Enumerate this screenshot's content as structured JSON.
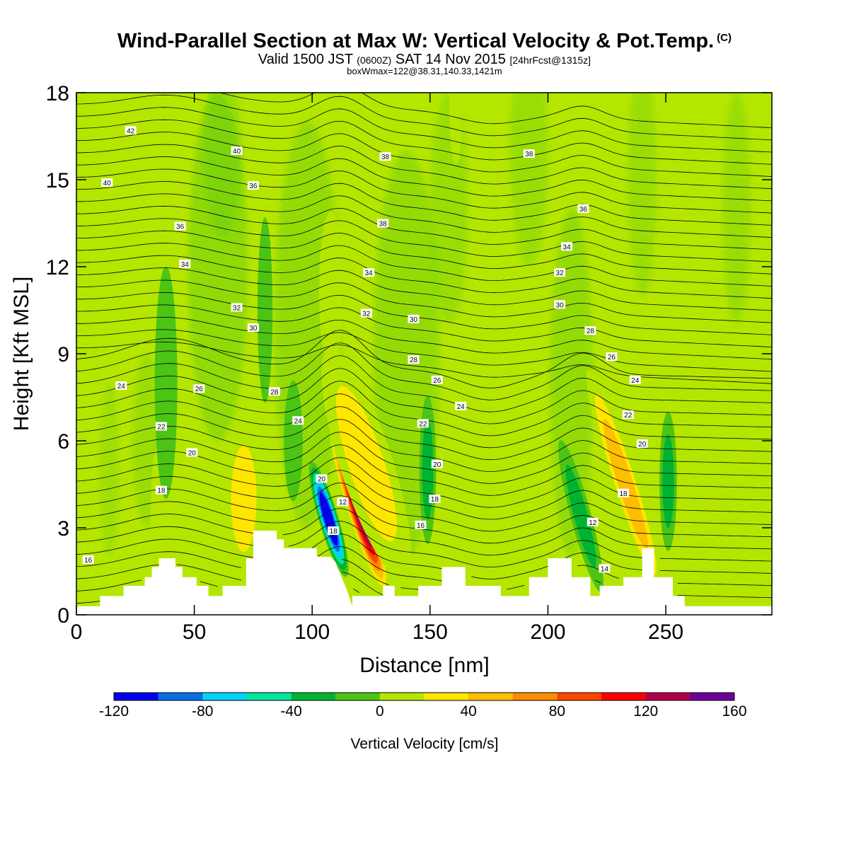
{
  "title": {
    "main": "Wind-Parallel Section at Max W: Vertical Velocity & Pot.Temp.",
    "copyright": "(C)",
    "valid_prefix": "Valid 1500 JST",
    "valid_utc": "(0600Z)",
    "valid_date": "SAT 14 Nov 2015",
    "forecast": "[24hrFcst@1315z]",
    "box": "boxWmax=122@38.31,140.33,1421m"
  },
  "colors": {
    "background_fill": "#b4e600",
    "terrain": "#ffffff",
    "contour": "#000000"
  },
  "chart_data": {
    "type": "heatmap",
    "xlabel": "Distance [nm]",
    "ylabel": "Height [Kft MSL]",
    "xlim": [
      0,
      295
    ],
    "ylim": [
      0,
      18
    ],
    "x_ticks": [
      0,
      50,
      100,
      150,
      200,
      250
    ],
    "y_ticks": [
      0,
      3,
      6,
      9,
      12,
      15,
      18
    ],
    "x_tick_labels": [
      "0",
      "50",
      "100",
      "150",
      "200",
      "250"
    ],
    "y_tick_labels": [
      "0",
      "3",
      "6",
      "9",
      "12",
      "15",
      "18"
    ],
    "colorbar": {
      "label": "Vertical Velocity [cm/s]",
      "tick_values": [
        -120,
        -80,
        -40,
        0,
        40,
        80,
        120,
        160
      ],
      "tick_labels": [
        "-120",
        "-80",
        "-40",
        "0",
        "40",
        "80",
        "120",
        "160"
      ],
      "bins": [
        -120,
        -100,
        -80,
        -60,
        -40,
        -20,
        0,
        20,
        40,
        60,
        80,
        100,
        120,
        140,
        160
      ],
      "colors": [
        "#0000f0",
        "#0a6ee6",
        "#00d2fa",
        "#00e6a0",
        "#00b432",
        "#4cc414",
        "#b4e600",
        "#ffe600",
        "#ffbe00",
        "#ff8c00",
        "#ff4600",
        "#ff0000",
        "#b4004b",
        "#6e0096"
      ]
    },
    "terrain_profile": {
      "x": [
        0,
        10,
        10,
        20,
        20,
        29,
        29,
        32,
        32,
        35,
        35,
        42,
        42,
        45,
        45,
        51,
        51,
        56,
        56,
        62,
        62,
        72,
        72,
        75,
        75,
        85,
        85,
        88,
        88,
        97,
        97,
        102,
        102,
        108,
        110,
        112,
        115,
        117,
        117,
        130,
        130,
        135,
        135,
        145,
        145,
        155,
        155,
        165,
        165,
        180,
        180,
        192,
        192,
        200,
        200,
        210,
        210,
        218,
        218,
        222,
        222,
        232,
        232,
        240,
        240,
        245,
        245,
        253,
        253,
        258,
        258,
        265,
        265,
        295
      ],
      "y": [
        0.3,
        0.3,
        0.65,
        0.65,
        1.0,
        1.0,
        1.3,
        1.3,
        1.65,
        1.65,
        1.95,
        1.95,
        1.65,
        1.65,
        1.3,
        1.3,
        1.0,
        1.0,
        0.65,
        0.65,
        1.0,
        1.0,
        1.95,
        1.95,
        2.9,
        2.9,
        2.6,
        2.6,
        2.3,
        2.3,
        2.3,
        2.3,
        2.0,
        2.0,
        1.8,
        1.4,
        0.8,
        0.3,
        0.65,
        0.65,
        1.0,
        1.0,
        0.65,
        0.65,
        1.0,
        1.0,
        1.65,
        1.65,
        1.0,
        1.0,
        0.65,
        0.65,
        1.3,
        1.3,
        1.95,
        1.95,
        1.3,
        1.3,
        0.65,
        0.65,
        1.0,
        1.0,
        1.3,
        1.3,
        2.3,
        2.3,
        1.3,
        1.3,
        0.65,
        0.65,
        0.3,
        0.3,
        0.3,
        0.3
      ]
    },
    "vertical_velocity_cells": [
      {
        "x": 107,
        "y": 3.3,
        "sx": 2.6,
        "sy": 1.3,
        "tilt": 0.28,
        "value": -120
      },
      {
        "x": 120,
        "y": 3.6,
        "sx": 3.2,
        "sy": 1.9,
        "tilt": 0.3,
        "value": 150
      },
      {
        "x": 123,
        "y": 5.2,
        "sx": 7,
        "sy": 2.6,
        "tilt": 0.3,
        "value": 45
      },
      {
        "x": 71,
        "y": 4.0,
        "sx": 5,
        "sy": 1.7,
        "value": 55
      },
      {
        "x": 34,
        "y": 3.3,
        "sx": 1.6,
        "sy": 1.5,
        "value": 35
      },
      {
        "x": 108,
        "y": 11.2,
        "sx": 3.2,
        "sy": 1.7,
        "value": 32
      },
      {
        "x": 172,
        "y": 11.5,
        "sx": 3.3,
        "sy": 2.3,
        "value": 34
      },
      {
        "x": 161,
        "y": 17.6,
        "sx": 1.8,
        "sy": 1.3,
        "value": 30
      },
      {
        "x": 233,
        "y": 4.5,
        "sx": 3.5,
        "sy": 2.6,
        "tilt": 0.3,
        "value": 65
      },
      {
        "x": 238,
        "y": 8.2,
        "sx": 2.5,
        "sy": 1.5,
        "value": 30
      },
      {
        "x": 262,
        "y": 9.2,
        "sx": 2.2,
        "sy": 2,
        "value": 30
      },
      {
        "x": 214,
        "y": 3.4,
        "sx": 2.7,
        "sy": 1.7,
        "tilt": 0.25,
        "value": -50
      },
      {
        "x": 251,
        "y": 4.6,
        "sx": 2.3,
        "sy": 1.5,
        "value": -50
      },
      {
        "x": 149,
        "y": 5.0,
        "sx": 2.2,
        "sy": 1.6,
        "value": -40
      },
      {
        "x": 92,
        "y": 6.0,
        "sx": 2.5,
        "sy": 1.3,
        "value": -30
      },
      {
        "x": 38,
        "y": 8.0,
        "sx": 3,
        "sy": 2.5,
        "value": -30
      },
      {
        "x": 80,
        "y": 10.5,
        "sx": 2,
        "sy": 2,
        "value": -30
      }
    ],
    "theta_levels": [
      16,
      18,
      20,
      22,
      24,
      26,
      28,
      30,
      32,
      34,
      36,
      38,
      40,
      42
    ],
    "contour_labels": [
      {
        "text": "42",
        "x": 23,
        "y": 16.7
      },
      {
        "text": "40",
        "x": 13,
        "y": 14.9
      },
      {
        "text": "40",
        "x": 68,
        "y": 16.0
      },
      {
        "text": "36",
        "x": 75,
        "y": 14.8
      },
      {
        "text": "36",
        "x": 44,
        "y": 13.4
      },
      {
        "text": "34",
        "x": 46,
        "y": 12.1
      },
      {
        "text": "32",
        "x": 68,
        "y": 10.6
      },
      {
        "text": "30",
        "x": 75,
        "y": 9.9
      },
      {
        "text": "38",
        "x": 131,
        "y": 15.8
      },
      {
        "text": "38",
        "x": 130,
        "y": 13.5
      },
      {
        "text": "34",
        "x": 124,
        "y": 11.8
      },
      {
        "text": "32",
        "x": 123,
        "y": 10.4
      },
      {
        "text": "30",
        "x": 143,
        "y": 10.2
      },
      {
        "text": "28",
        "x": 143,
        "y": 8.8
      },
      {
        "text": "26",
        "x": 153,
        "y": 8.1
      },
      {
        "text": "24",
        "x": 163,
        "y": 7.2
      },
      {
        "text": "22",
        "x": 147,
        "y": 6.6
      },
      {
        "text": "20",
        "x": 153,
        "y": 5.2
      },
      {
        "text": "18",
        "x": 152,
        "y": 4.0
      },
      {
        "text": "16",
        "x": 146,
        "y": 3.1
      },
      {
        "text": "24",
        "x": 19,
        "y": 7.9
      },
      {
        "text": "26",
        "x": 52,
        "y": 7.8
      },
      {
        "text": "28",
        "x": 84,
        "y": 7.7
      },
      {
        "text": "24",
        "x": 94,
        "y": 6.7
      },
      {
        "text": "22",
        "x": 36,
        "y": 6.5
      },
      {
        "text": "20",
        "x": 49,
        "y": 5.6
      },
      {
        "text": "18",
        "x": 36,
        "y": 4.3
      },
      {
        "text": "16",
        "x": 5,
        "y": 1.9
      },
      {
        "text": "20",
        "x": 104,
        "y": 4.7
      },
      {
        "text": "12",
        "x": 113,
        "y": 3.9
      },
      {
        "text": "18",
        "x": 109,
        "y": 2.9
      },
      {
        "text": "38",
        "x": 192,
        "y": 15.9
      },
      {
        "text": "36",
        "x": 215,
        "y": 14.0
      },
      {
        "text": "34",
        "x": 208,
        "y": 12.7
      },
      {
        "text": "32",
        "x": 205,
        "y": 11.8
      },
      {
        "text": "30",
        "x": 205,
        "y": 10.7
      },
      {
        "text": "28",
        "x": 218,
        "y": 9.8
      },
      {
        "text": "26",
        "x": 227,
        "y": 8.9
      },
      {
        "text": "24",
        "x": 237,
        "y": 8.1
      },
      {
        "text": "22",
        "x": 234,
        "y": 6.9
      },
      {
        "text": "20",
        "x": 240,
        "y": 5.9
      },
      {
        "text": "18",
        "x": 232,
        "y": 4.2
      },
      {
        "text": "12",
        "x": 219,
        "y": 3.2
      },
      {
        "text": "14",
        "x": 224,
        "y": 1.6
      }
    ]
  }
}
